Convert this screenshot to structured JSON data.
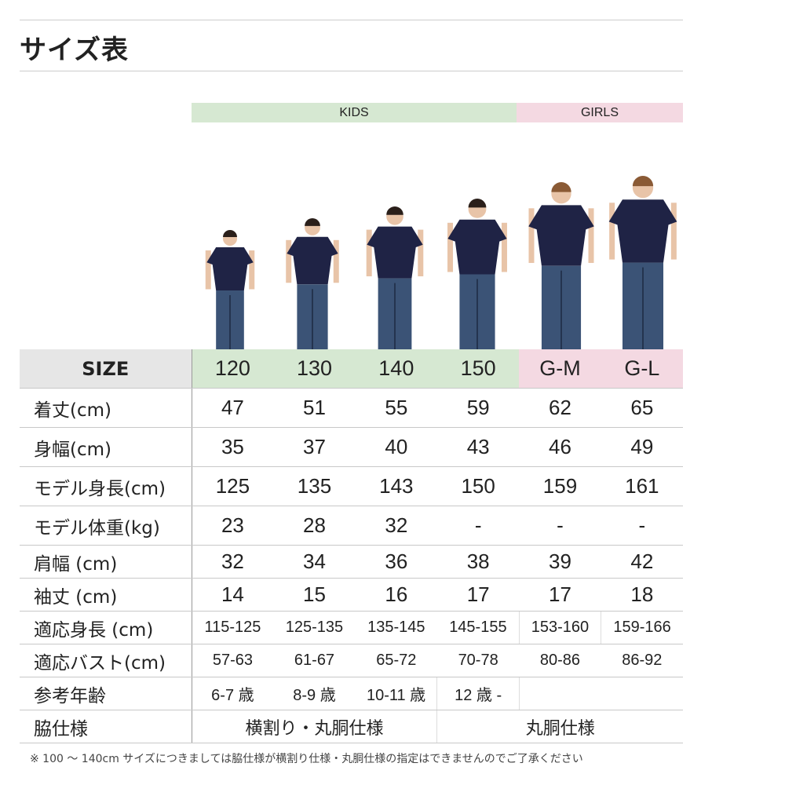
{
  "title": "サイズ表",
  "groups": {
    "kids": "KIDS",
    "girls": "GIRLS",
    "kids_color": "#d6e8d2",
    "girls_color": "#f4d9e2",
    "size_header_color": "#e6e6e6"
  },
  "header": {
    "label": "SIZE",
    "sizes": [
      "120",
      "130",
      "140",
      "150",
      "G-M",
      "G-L"
    ]
  },
  "rows": [
    {
      "label": "着丈(cm)",
      "values": [
        "47",
        "51",
        "55",
        "59",
        "62",
        "65"
      ]
    },
    {
      "label": "身幅(cm)",
      "values": [
        "35",
        "37",
        "40",
        "43",
        "46",
        "49"
      ]
    },
    {
      "label": "モデル身長(cm)",
      "values": [
        "125",
        "135",
        "143",
        "150",
        "159",
        "161"
      ]
    },
    {
      "label": "モデル体重(kg)",
      "values": [
        "23",
        "28",
        "32",
        "-",
        "-",
        "-"
      ]
    },
    {
      "label": "肩幅 (cm)",
      "values": [
        "32",
        "34",
        "36",
        "38",
        "39",
        "42"
      ]
    },
    {
      "label": "袖丈 (cm)",
      "values": [
        "14",
        "15",
        "16",
        "17",
        "17",
        "18"
      ]
    },
    {
      "label": "適応身長 (cm)",
      "values": [
        "115-125",
        "125-135",
        "135-145",
        "145-155",
        "153-160",
        "159-166"
      ]
    },
    {
      "label": "適応バスト(cm)",
      "values": [
        "57-63",
        "61-67",
        "65-72",
        "70-78",
        "80-86",
        "86-92"
      ]
    },
    {
      "label": "参考年齢",
      "values": [
        "6-7 歳",
        "8-9 歳",
        "10-11 歳",
        "12 歳 -"
      ]
    },
    {
      "label": "脇仕様",
      "values": [
        "横割り・丸胴仕様",
        "丸胴仕様"
      ]
    }
  ],
  "note": "※ 100 〜 140cm サイズにつきましては脇仕様が横割り仕様・丸胴仕様の指定はできませんのでご了承ください"
}
